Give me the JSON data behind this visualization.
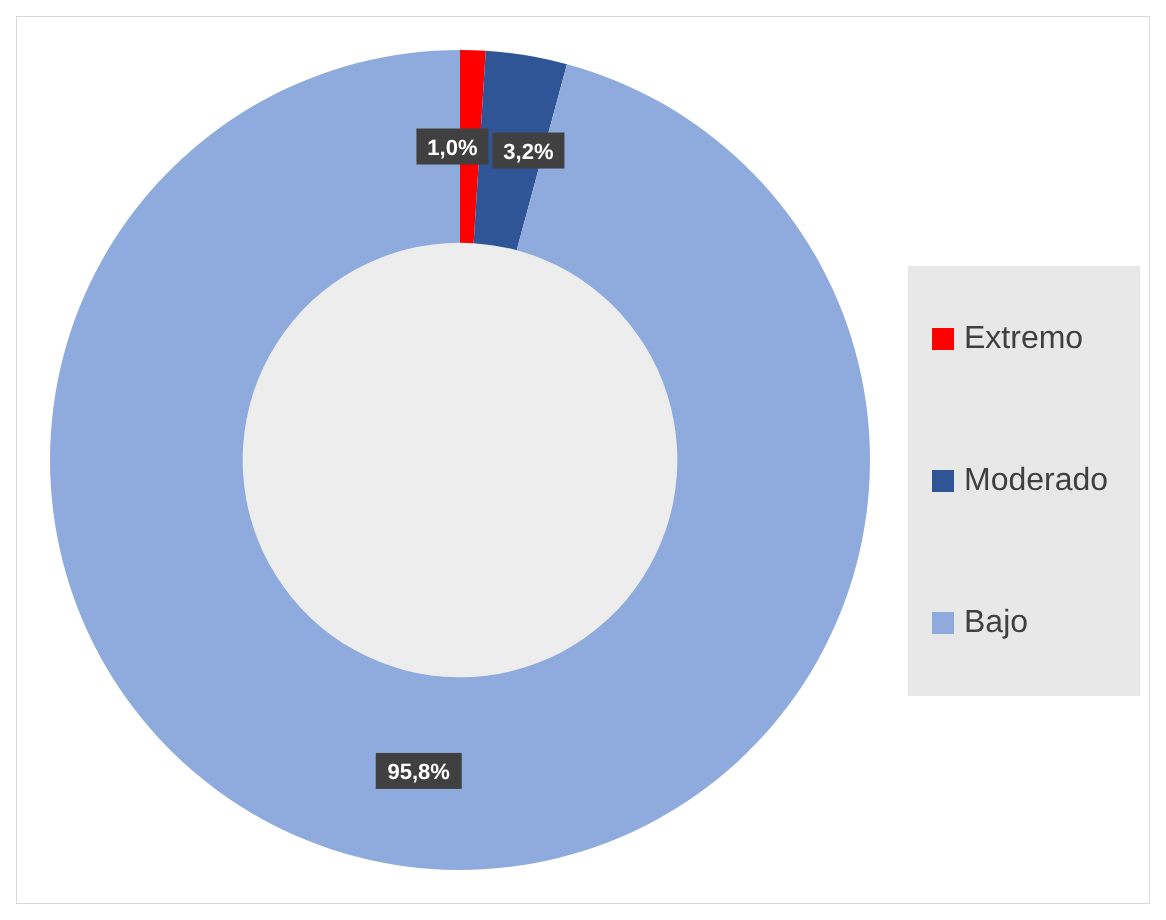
{
  "chart_data": {
    "type": "donut",
    "categories": [
      "Extremo",
      "Moderado",
      "Bajo"
    ],
    "values": [
      1.0,
      3.2,
      95.8
    ],
    "colors": [
      "#ff0000",
      "#2f5597",
      "#8faadc"
    ],
    "value_labels": [
      "1,0%",
      "3,2%",
      "95,8%"
    ],
    "legend": "right"
  }
}
